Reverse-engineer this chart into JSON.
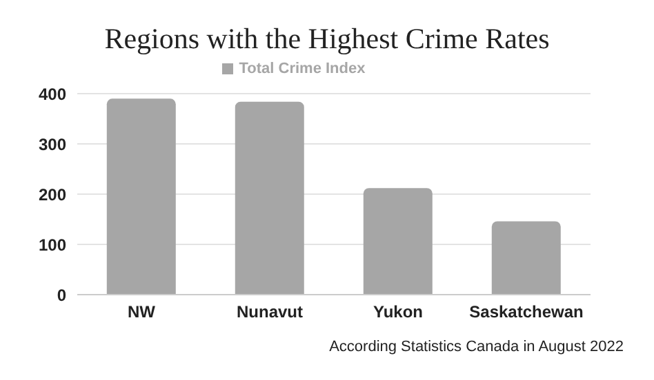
{
  "chart_data": {
    "type": "bar",
    "title": "Regions with the Highest Crime Rates",
    "categories": [
      "NW",
      "Nunavut",
      "Yukon",
      "Saskatchewan"
    ],
    "series": [
      {
        "name": "Total Crime Index",
        "color": "#a6a6a6",
        "values": [
          390,
          384,
          212,
          146
        ]
      }
    ],
    "ylim": [
      0,
      400
    ],
    "yticks": [
      0,
      100,
      200,
      300,
      400
    ],
    "grid": "y",
    "legend": "top",
    "annotations": [
      "According Statistics Canada in August 2022"
    ]
  }
}
